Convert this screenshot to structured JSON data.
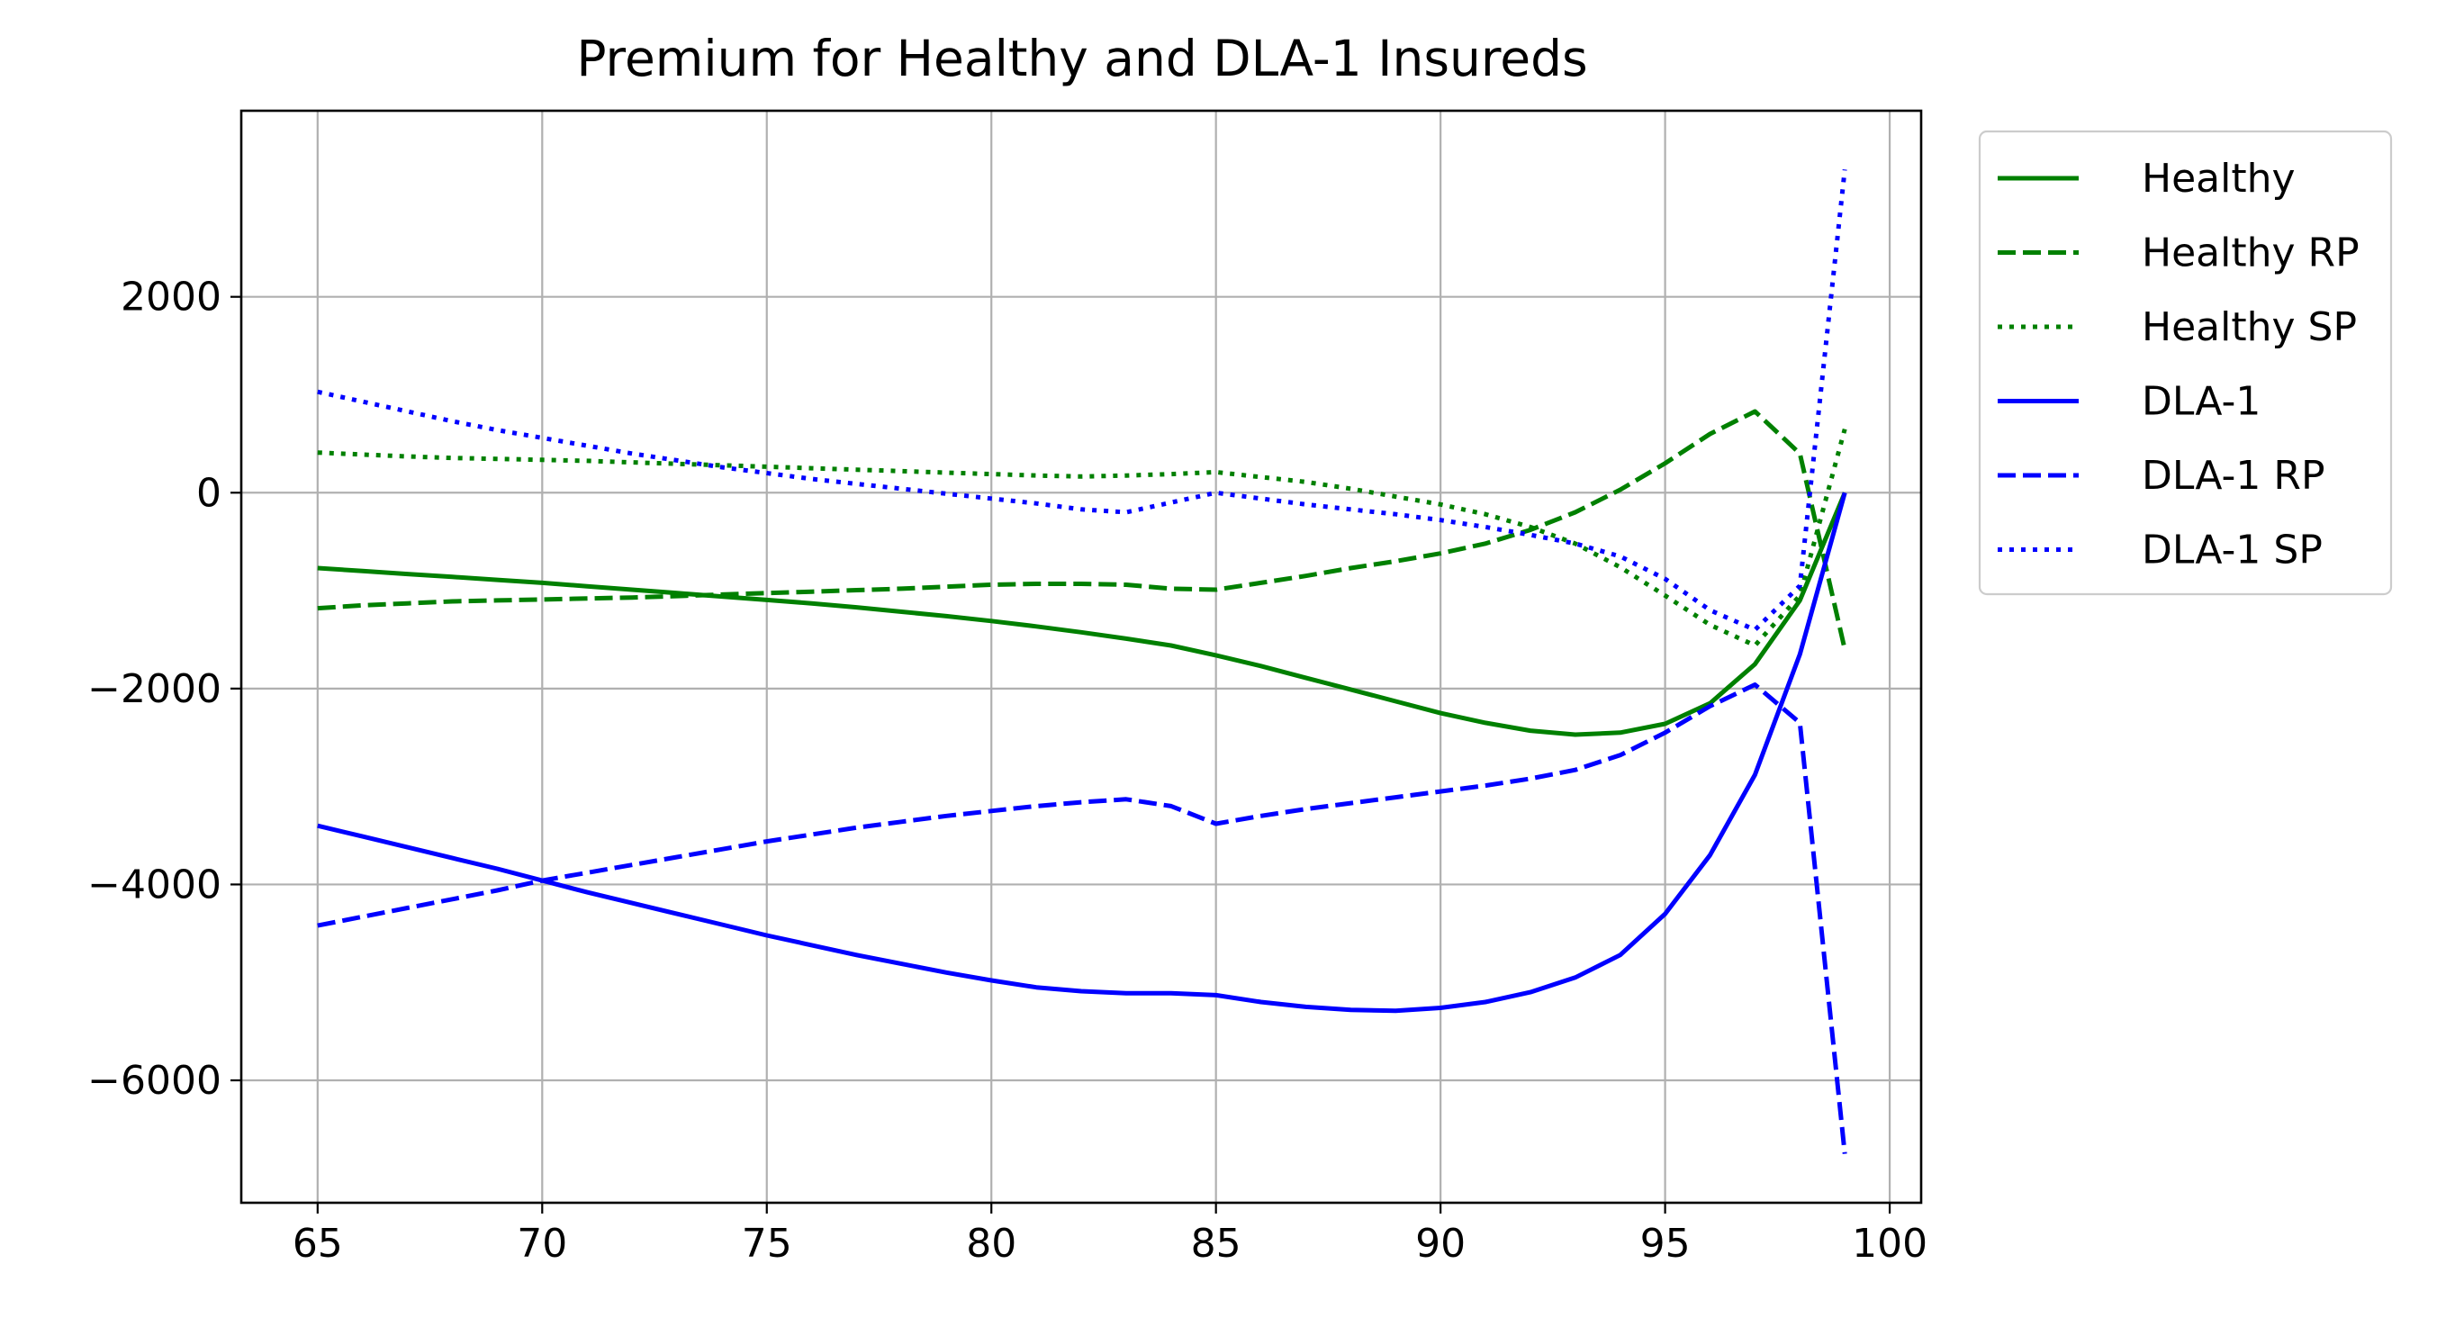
{
  "chart_data": {
    "type": "line",
    "title": "Premium for Healthy and DLA-1 Insureds",
    "xlabel": "",
    "ylabel": "",
    "xlim": [
      63.3,
      100.7
    ],
    "ylim": [
      -7250,
      3900
    ],
    "x_ticks": [
      65,
      70,
      75,
      80,
      85,
      90,
      95,
      100
    ],
    "y_ticks": [
      2000,
      0,
      -2000,
      -4000,
      -6000
    ],
    "y_tick_labels": [
      "2000",
      "0",
      "−2000",
      "−4000",
      "−6000"
    ],
    "grid": true,
    "legend_position": "outside-top-right",
    "x": [
      65,
      66,
      67,
      68,
      69,
      70,
      71,
      72,
      73,
      74,
      75,
      76,
      77,
      78,
      79,
      80,
      81,
      82,
      83,
      84,
      85,
      86,
      87,
      88,
      89,
      90,
      91,
      92,
      93,
      94,
      95,
      96,
      97,
      98,
      99
    ],
    "series": [
      {
        "name": "Healthy",
        "color": "#008000",
        "dash": "solid",
        "values": [
          -770,
          -800,
          -830,
          -860,
          -890,
          -920,
          -955,
          -990,
          -1025,
          -1060,
          -1095,
          -1130,
          -1170,
          -1215,
          -1260,
          -1310,
          -1365,
          -1425,
          -1490,
          -1560,
          -1660,
          -1770,
          -1890,
          -2010,
          -2130,
          -2250,
          -2350,
          -2430,
          -2470,
          -2450,
          -2360,
          -2150,
          -1750,
          -1100,
          0
        ]
      },
      {
        "name": "Healthy RP",
        "color": "#008000",
        "dash": "dashed",
        "values": [
          -1180,
          -1150,
          -1130,
          -1110,
          -1100,
          -1090,
          -1080,
          -1070,
          -1055,
          -1040,
          -1025,
          -1010,
          -995,
          -980,
          -960,
          -940,
          -930,
          -930,
          -940,
          -980,
          -990,
          -920,
          -850,
          -770,
          -700,
          -620,
          -520,
          -380,
          -200,
          30,
          300,
          600,
          830,
          400,
          -1600
        ]
      },
      {
        "name": "Healthy SP",
        "color": "#008000",
        "dash": "dotted",
        "values": [
          410,
          390,
          370,
          355,
          345,
          335,
          325,
          310,
          295,
          280,
          265,
          250,
          235,
          220,
          205,
          190,
          175,
          165,
          175,
          190,
          210,
          160,
          110,
          40,
          -40,
          -120,
          -220,
          -350,
          -520,
          -760,
          -1050,
          -1350,
          -1560,
          -1050,
          650
        ]
      },
      {
        "name": "DLA-1",
        "color": "#0000ff",
        "dash": "solid",
        "values": [
          -3400,
          -3510,
          -3620,
          -3730,
          -3840,
          -3960,
          -4080,
          -4190,
          -4300,
          -4410,
          -4520,
          -4620,
          -4720,
          -4810,
          -4900,
          -4980,
          -5050,
          -5090,
          -5110,
          -5110,
          -5130,
          -5200,
          -5250,
          -5280,
          -5290,
          -5260,
          -5200,
          -5100,
          -4950,
          -4720,
          -4300,
          -3700,
          -2880,
          -1650,
          0
        ]
      },
      {
        "name": "DLA-1 RP",
        "color": "#0000ff",
        "dash": "dashed",
        "values": [
          -4420,
          -4330,
          -4240,
          -4150,
          -4060,
          -3960,
          -3880,
          -3800,
          -3720,
          -3640,
          -3560,
          -3490,
          -3420,
          -3360,
          -3300,
          -3250,
          -3200,
          -3160,
          -3130,
          -3200,
          -3380,
          -3300,
          -3230,
          -3170,
          -3110,
          -3050,
          -2990,
          -2920,
          -2830,
          -2680,
          -2450,
          -2180,
          -1960,
          -2350,
          -6750
        ]
      },
      {
        "name": "DLA-1 SP",
        "color": "#0000ff",
        "dash": "dotted",
        "values": [
          1030,
          930,
          830,
          730,
          640,
          560,
          480,
          400,
          330,
          260,
          200,
          140,
          90,
          40,
          -10,
          -60,
          -110,
          -170,
          -200,
          -100,
          0,
          -60,
          -120,
          -170,
          -220,
          -280,
          -350,
          -430,
          -520,
          -650,
          -880,
          -1200,
          -1400,
          -950,
          3300
        ]
      }
    ]
  }
}
